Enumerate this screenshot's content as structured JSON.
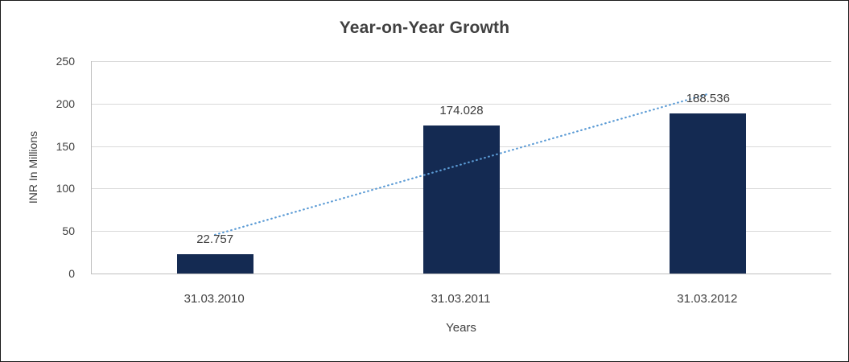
{
  "chart_data": {
    "type": "bar",
    "title": "Year-on-Year Growth",
    "xlabel": "Years",
    "ylabel": "INR In Millions",
    "categories": [
      "31.03.2010",
      "31.03.2011",
      "31.03.2012"
    ],
    "values": [
      22.757,
      174.028,
      188.536
    ],
    "value_labels": [
      "22.757",
      "174.028",
      "188.536"
    ],
    "yticks": [
      0,
      50,
      100,
      150,
      200,
      250
    ],
    "ylim": [
      0,
      250
    ],
    "grid": "horizontal",
    "legend": "none",
    "bar_color": "#142A52",
    "trendline": {
      "type": "linear",
      "style": "dotted",
      "color": "#5B9BD5"
    }
  }
}
